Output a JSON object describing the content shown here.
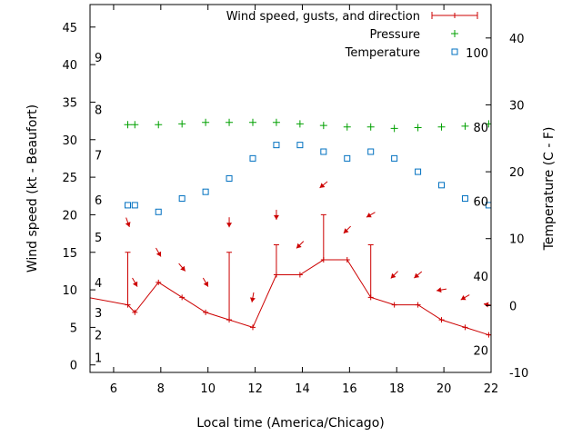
{
  "colors": {
    "wind": "#cc0000",
    "pressure": "#00a000",
    "temperature": "#0070c0",
    "axis": "#000000"
  },
  "chart_data": {
    "type": "line",
    "xlabel": "Local time (America/Chicago)",
    "ylabel_left": "Wind speed (kt - Beaufort)",
    "ylabel_right": "Temperature (C - F)",
    "xlim": [
      5,
      22
    ],
    "ylim_left": [
      -1,
      48
    ],
    "ylim_right": [
      -10,
      45
    ],
    "x_ticks": [
      6,
      8,
      10,
      12,
      14,
      16,
      18,
      20,
      22
    ],
    "y_left_ticks": [
      0,
      5,
      10,
      15,
      20,
      25,
      30,
      35,
      40,
      45
    ],
    "y_right_ticks": [
      -10,
      0,
      10,
      20,
      30,
      40
    ],
    "beaufort_labels": [
      {
        "label": "1",
        "y": 1
      },
      {
        "label": "2",
        "y": 4
      },
      {
        "label": "3",
        "y": 7
      },
      {
        "label": "4",
        "y": 11
      },
      {
        "label": "5",
        "y": 17
      },
      {
        "label": "6",
        "y": 22
      },
      {
        "label": "7",
        "y": 28
      },
      {
        "label": "8",
        "y": 34
      },
      {
        "label": "9",
        "y": 41
      }
    ],
    "fahrenheit_labels": [
      {
        "label": "20",
        "c": -6.7
      },
      {
        "label": "40",
        "c": 4.4
      },
      {
        "label": "60",
        "c": 15.6
      },
      {
        "label": "80",
        "c": 26.7
      },
      {
        "label": "100",
        "c": 37.8
      }
    ],
    "legend": [
      {
        "name": "Wind speed, gusts, and direction",
        "key": "wind"
      },
      {
        "name": "Pressure",
        "key": "pressure"
      },
      {
        "name": "Temperature",
        "key": "temperature"
      }
    ],
    "wind": {
      "x": [
        4.9,
        6.6,
        6.9,
        7.9,
        8.9,
        9.9,
        10.9,
        11.9,
        12.9,
        13.9,
        14.9,
        15.9,
        16.9,
        17.9,
        18.9,
        19.9,
        20.9,
        21.9,
        22.0
      ],
      "y": [
        9,
        8,
        7,
        11,
        9,
        7,
        6,
        5,
        12,
        12,
        14,
        14,
        9,
        8,
        8,
        6,
        5,
        4,
        4
      ]
    },
    "gusts": [
      {
        "x": 6.6,
        "low": 8,
        "high": 15
      },
      {
        "x": 10.9,
        "low": 6,
        "high": 15
      },
      {
        "x": 12.9,
        "low": 12,
        "high": 16
      },
      {
        "x": 14.9,
        "low": 14,
        "high": 20
      },
      {
        "x": 16.9,
        "low": 9,
        "high": 16
      }
    ],
    "wind_direction": [
      {
        "x": 6.6,
        "y": 19,
        "dir": 340
      },
      {
        "x": 6.9,
        "y": 11,
        "dir": 330
      },
      {
        "x": 7.9,
        "y": 15,
        "dir": 330
      },
      {
        "x": 8.9,
        "y": 13,
        "dir": 320
      },
      {
        "x": 9.9,
        "y": 11,
        "dir": 330
      },
      {
        "x": 10.9,
        "y": 19,
        "dir": 360
      },
      {
        "x": 11.9,
        "y": 9,
        "dir": 10
      },
      {
        "x": 12.9,
        "y": 20,
        "dir": 360
      },
      {
        "x": 13.9,
        "y": 16,
        "dir": 45
      },
      {
        "x": 14.9,
        "y": 24,
        "dir": 50
      },
      {
        "x": 15.9,
        "y": 18,
        "dir": 45
      },
      {
        "x": 16.9,
        "y": 20,
        "dir": 60
      },
      {
        "x": 17.9,
        "y": 12,
        "dir": 45
      },
      {
        "x": 18.9,
        "y": 12,
        "dir": 50
      },
      {
        "x": 19.9,
        "y": 10,
        "dir": 80
      },
      {
        "x": 20.9,
        "y": 9,
        "dir": 60
      },
      {
        "x": 21.9,
        "y": 8,
        "dir": 100
      }
    ],
    "pressure": {
      "x": [
        6.6,
        6.9,
        7.9,
        8.9,
        9.9,
        10.9,
        11.9,
        12.9,
        13.9,
        14.9,
        15.9,
        16.9,
        17.9,
        18.9,
        19.9,
        20.9,
        21.9
      ],
      "y": [
        32,
        32,
        32,
        32.1,
        32.3,
        32.3,
        32.3,
        32.3,
        32.1,
        31.9,
        31.7,
        31.7,
        31.5,
        31.6,
        31.7,
        31.8,
        32.1
      ]
    },
    "temperature": {
      "x": [
        6.6,
        6.9,
        7.9,
        8.9,
        9.9,
        10.9,
        11.9,
        12.9,
        13.9,
        14.9,
        15.9,
        16.9,
        17.9,
        18.9,
        19.9,
        20.9,
        21.9
      ],
      "c": [
        15,
        15,
        14,
        16,
        17,
        19,
        22,
        24,
        24,
        23,
        22,
        23,
        22,
        20,
        18,
        16,
        15
      ]
    }
  }
}
